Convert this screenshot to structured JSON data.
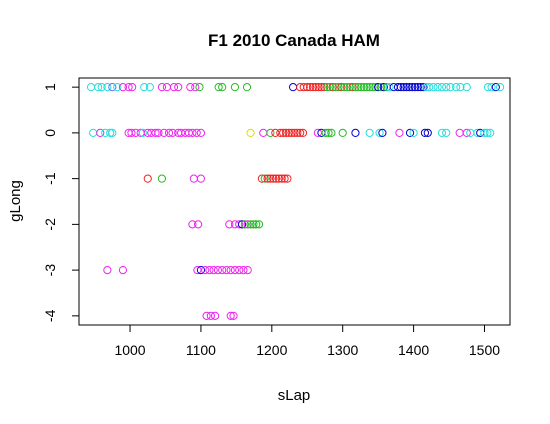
{
  "chart_data": {
    "type": "scatter",
    "title": "F1 2010 Canada HAM",
    "xlabel": "sLap",
    "ylabel": "gLong",
    "xlim": [
      928,
      1536
    ],
    "ylim": [
      -4.2,
      1.2
    ],
    "x_ticks": [
      1000,
      1100,
      1200,
      1300,
      1400,
      1500
    ],
    "y_ticks": [
      1,
      0,
      -1,
      -2,
      -3,
      -4
    ],
    "grid": false,
    "legend": "none",
    "marker": "open-circle",
    "points": [
      {
        "x": 945,
        "y": 1,
        "color": "#22dddd"
      },
      {
        "x": 955,
        "y": 1,
        "color": "#22dddd"
      },
      {
        "x": 960,
        "y": 1,
        "color": "#22dddd"
      },
      {
        "x": 968,
        "y": 1,
        "color": "#22dddd"
      },
      {
        "x": 975,
        "y": 1,
        "color": "#6666ff"
      },
      {
        "x": 982,
        "y": 1,
        "color": "#22dddd"
      },
      {
        "x": 990,
        "y": 1,
        "color": "#ee22ee"
      },
      {
        "x": 998,
        "y": 1,
        "color": "#ee22ee"
      },
      {
        "x": 1003,
        "y": 1,
        "color": "#ee22ee"
      },
      {
        "x": 1020,
        "y": 1,
        "color": "#22dddd"
      },
      {
        "x": 1028,
        "y": 1,
        "color": "#22dddd"
      },
      {
        "x": 1045,
        "y": 1,
        "color": "#ee22ee"
      },
      {
        "x": 1052,
        "y": 1,
        "color": "#ee22ee"
      },
      {
        "x": 1062,
        "y": 1,
        "color": "#ee22ee"
      },
      {
        "x": 1068,
        "y": 1,
        "color": "#ee22ee"
      },
      {
        "x": 1085,
        "y": 1,
        "color": "#ee22ee"
      },
      {
        "x": 1092,
        "y": 1,
        "color": "#ee22ee"
      },
      {
        "x": 1098,
        "y": 1,
        "color": "#22bb22"
      },
      {
        "x": 1125,
        "y": 1,
        "color": "#22bb22"
      },
      {
        "x": 1130,
        "y": 1,
        "color": "#22bb22"
      },
      {
        "x": 1148,
        "y": 1,
        "color": "#22bb22"
      },
      {
        "x": 1165,
        "y": 1,
        "color": "#22bb22"
      },
      {
        "x": 1230,
        "y": 1,
        "color": "#0000cc"
      },
      {
        "x": 1240,
        "y": 1,
        "color": "#ee2222"
      },
      {
        "x": 1245,
        "y": 1,
        "color": "#ee2222"
      },
      {
        "x": 1250,
        "y": 1,
        "color": "#ee2222"
      },
      {
        "x": 1254,
        "y": 1,
        "color": "#ee2222"
      },
      {
        "x": 1258,
        "y": 1,
        "color": "#ee2222"
      },
      {
        "x": 1262,
        "y": 1,
        "color": "#ee2222"
      },
      {
        "x": 1266,
        "y": 1,
        "color": "#ee2222"
      },
      {
        "x": 1270,
        "y": 1,
        "color": "#ee2222"
      },
      {
        "x": 1274,
        "y": 1,
        "color": "#ee2222"
      },
      {
        "x": 1278,
        "y": 1,
        "color": "#22bb22"
      },
      {
        "x": 1282,
        "y": 1,
        "color": "#22bb22"
      },
      {
        "x": 1286,
        "y": 1,
        "color": "#ee2222"
      },
      {
        "x": 1290,
        "y": 1,
        "color": "#22bb22"
      },
      {
        "x": 1294,
        "y": 1,
        "color": "#22bb22"
      },
      {
        "x": 1298,
        "y": 1,
        "color": "#ee2222"
      },
      {
        "x": 1302,
        "y": 1,
        "color": "#22bb22"
      },
      {
        "x": 1306,
        "y": 1,
        "color": "#22bb22"
      },
      {
        "x": 1310,
        "y": 1,
        "color": "#22bb22"
      },
      {
        "x": 1314,
        "y": 1,
        "color": "#ee2222"
      },
      {
        "x": 1318,
        "y": 1,
        "color": "#22bb22"
      },
      {
        "x": 1322,
        "y": 1,
        "color": "#22bb22"
      },
      {
        "x": 1326,
        "y": 1,
        "color": "#22bb22"
      },
      {
        "x": 1330,
        "y": 1,
        "color": "#22bb22"
      },
      {
        "x": 1334,
        "y": 1,
        "color": "#22bb22"
      },
      {
        "x": 1338,
        "y": 1,
        "color": "#22bb22"
      },
      {
        "x": 1342,
        "y": 1,
        "color": "#22bb22"
      },
      {
        "x": 1346,
        "y": 1,
        "color": "#22bb22"
      },
      {
        "x": 1350,
        "y": 1,
        "color": "#0000cc"
      },
      {
        "x": 1354,
        "y": 1,
        "color": "#22bb22"
      },
      {
        "x": 1358,
        "y": 1,
        "color": "#0000cc"
      },
      {
        "x": 1362,
        "y": 1,
        "color": "#22bb22"
      },
      {
        "x": 1366,
        "y": 1,
        "color": "#22dddd"
      },
      {
        "x": 1372,
        "y": 1,
        "color": "#0000cc"
      },
      {
        "x": 1378,
        "y": 1,
        "color": "#0000cc"
      },
      {
        "x": 1382,
        "y": 1,
        "color": "#0000cc"
      },
      {
        "x": 1386,
        "y": 1,
        "color": "#0000cc"
      },
      {
        "x": 1390,
        "y": 1,
        "color": "#0000cc"
      },
      {
        "x": 1394,
        "y": 1,
        "color": "#0000cc"
      },
      {
        "x": 1398,
        "y": 1,
        "color": "#0000cc"
      },
      {
        "x": 1402,
        "y": 1,
        "color": "#0000cc"
      },
      {
        "x": 1406,
        "y": 1,
        "color": "#0000cc"
      },
      {
        "x": 1410,
        "y": 1,
        "color": "#0000cc"
      },
      {
        "x": 1414,
        "y": 1,
        "color": "#0000cc"
      },
      {
        "x": 1418,
        "y": 1,
        "color": "#22dddd"
      },
      {
        "x": 1422,
        "y": 1,
        "color": "#22dddd"
      },
      {
        "x": 1428,
        "y": 1,
        "color": "#22dddd"
      },
      {
        "x": 1434,
        "y": 1,
        "color": "#22dddd"
      },
      {
        "x": 1440,
        "y": 1,
        "color": "#22dddd"
      },
      {
        "x": 1446,
        "y": 1,
        "color": "#22dddd"
      },
      {
        "x": 1452,
        "y": 1,
        "color": "#22dddd"
      },
      {
        "x": 1460,
        "y": 1,
        "color": "#22dddd"
      },
      {
        "x": 1466,
        "y": 1,
        "color": "#22dddd"
      },
      {
        "x": 1475,
        "y": 1,
        "color": "#22dddd"
      },
      {
        "x": 1505,
        "y": 1,
        "color": "#22dddd"
      },
      {
        "x": 1510,
        "y": 1,
        "color": "#22dddd"
      },
      {
        "x": 1516,
        "y": 1,
        "color": "#0000cc"
      },
      {
        "x": 1522,
        "y": 1,
        "color": "#22dddd"
      },
      {
        "x": 948,
        "y": 0,
        "color": "#22dddd"
      },
      {
        "x": 958,
        "y": 0,
        "color": "#ee22ee"
      },
      {
        "x": 965,
        "y": 0,
        "color": "#22dddd"
      },
      {
        "x": 972,
        "y": 0,
        "color": "#22dddd"
      },
      {
        "x": 975,
        "y": 0,
        "color": "#22dddd"
      },
      {
        "x": 998,
        "y": 0,
        "color": "#ee22ee"
      },
      {
        "x": 1002,
        "y": 0,
        "color": "#ee22ee"
      },
      {
        "x": 1008,
        "y": 0,
        "color": "#ee22ee"
      },
      {
        "x": 1015,
        "y": 0,
        "color": "#ee22ee"
      },
      {
        "x": 1018,
        "y": 0,
        "color": "#22dddd"
      },
      {
        "x": 1025,
        "y": 0,
        "color": "#ee22ee"
      },
      {
        "x": 1030,
        "y": 0,
        "color": "#ee22ee"
      },
      {
        "x": 1036,
        "y": 0,
        "color": "#ee22ee"
      },
      {
        "x": 1040,
        "y": 0,
        "color": "#ee22ee"
      },
      {
        "x": 1048,
        "y": 0,
        "color": "#ee22ee"
      },
      {
        "x": 1055,
        "y": 0,
        "color": "#ee22ee"
      },
      {
        "x": 1060,
        "y": 0,
        "color": "#ee22ee"
      },
      {
        "x": 1068,
        "y": 0,
        "color": "#ee22ee"
      },
      {
        "x": 1072,
        "y": 0,
        "color": "#ee22ee"
      },
      {
        "x": 1078,
        "y": 0,
        "color": "#ee22ee"
      },
      {
        "x": 1083,
        "y": 0,
        "color": "#ee22ee"
      },
      {
        "x": 1088,
        "y": 0,
        "color": "#ee22ee"
      },
      {
        "x": 1094,
        "y": 0,
        "color": "#ee22ee"
      },
      {
        "x": 1100,
        "y": 0,
        "color": "#ee22ee"
      },
      {
        "x": 1170,
        "y": 0,
        "color": "#dddd00"
      },
      {
        "x": 1188,
        "y": 0,
        "color": "#ee22ee"
      },
      {
        "x": 1198,
        "y": 0,
        "color": "#22bb22"
      },
      {
        "x": 1205,
        "y": 0,
        "color": "#ee2222"
      },
      {
        "x": 1212,
        "y": 0,
        "color": "#ee2222"
      },
      {
        "x": 1216,
        "y": 0,
        "color": "#ee2222"
      },
      {
        "x": 1220,
        "y": 0,
        "color": "#ee2222"
      },
      {
        "x": 1224,
        "y": 0,
        "color": "#ee2222"
      },
      {
        "x": 1228,
        "y": 0,
        "color": "#ee2222"
      },
      {
        "x": 1232,
        "y": 0,
        "color": "#ee2222"
      },
      {
        "x": 1236,
        "y": 0,
        "color": "#ee2222"
      },
      {
        "x": 1240,
        "y": 0,
        "color": "#ee2222"
      },
      {
        "x": 1244,
        "y": 0,
        "color": "#ee2222"
      },
      {
        "x": 1265,
        "y": 0,
        "color": "#ee22ee"
      },
      {
        "x": 1270,
        "y": 0,
        "color": "#0000cc"
      },
      {
        "x": 1276,
        "y": 0,
        "color": "#22bb22"
      },
      {
        "x": 1280,
        "y": 0,
        "color": "#22bb22"
      },
      {
        "x": 1284,
        "y": 0,
        "color": "#22bb22"
      },
      {
        "x": 1300,
        "y": 0,
        "color": "#22bb22"
      },
      {
        "x": 1318,
        "y": 0,
        "color": "#0000cc"
      },
      {
        "x": 1338,
        "y": 0,
        "color": "#22dddd"
      },
      {
        "x": 1352,
        "y": 0,
        "color": "#22dddd"
      },
      {
        "x": 1356,
        "y": 0,
        "color": "#0000cc"
      },
      {
        "x": 1380,
        "y": 0,
        "color": "#ee22ee"
      },
      {
        "x": 1395,
        "y": 0,
        "color": "#0000cc"
      },
      {
        "x": 1400,
        "y": 0,
        "color": "#22dddd"
      },
      {
        "x": 1416,
        "y": 0,
        "color": "#0000cc"
      },
      {
        "x": 1420,
        "y": 0,
        "color": "#0000cc"
      },
      {
        "x": 1440,
        "y": 0,
        "color": "#22dddd"
      },
      {
        "x": 1446,
        "y": 0,
        "color": "#22dddd"
      },
      {
        "x": 1465,
        "y": 0,
        "color": "#ee22ee"
      },
      {
        "x": 1475,
        "y": 0,
        "color": "#ee22ee"
      },
      {
        "x": 1480,
        "y": 0,
        "color": "#22dddd"
      },
      {
        "x": 1490,
        "y": 0,
        "color": "#22dddd"
      },
      {
        "x": 1494,
        "y": 0,
        "color": "#0000cc"
      },
      {
        "x": 1500,
        "y": 0,
        "color": "#22dddd"
      },
      {
        "x": 1504,
        "y": 0,
        "color": "#22dddd"
      },
      {
        "x": 1508,
        "y": 0,
        "color": "#22dddd"
      },
      {
        "x": 1025,
        "y": -1,
        "color": "#ee2222"
      },
      {
        "x": 1045,
        "y": -1,
        "color": "#22bb22"
      },
      {
        "x": 1090,
        "y": -1,
        "color": "#ee22ee"
      },
      {
        "x": 1100,
        "y": -1,
        "color": "#ee22ee"
      },
      {
        "x": 1186,
        "y": -1,
        "color": "#ee2222"
      },
      {
        "x": 1190,
        "y": -1,
        "color": "#22bb22"
      },
      {
        "x": 1194,
        "y": -1,
        "color": "#ee2222"
      },
      {
        "x": 1198,
        "y": -1,
        "color": "#ee2222"
      },
      {
        "x": 1202,
        "y": -1,
        "color": "#ee2222"
      },
      {
        "x": 1206,
        "y": -1,
        "color": "#ee2222"
      },
      {
        "x": 1210,
        "y": -1,
        "color": "#ee2222"
      },
      {
        "x": 1214,
        "y": -1,
        "color": "#ee2222"
      },
      {
        "x": 1218,
        "y": -1,
        "color": "#ee2222"
      },
      {
        "x": 1222,
        "y": -1,
        "color": "#ee2222"
      },
      {
        "x": 1088,
        "y": -2,
        "color": "#ee22ee"
      },
      {
        "x": 1096,
        "y": -2,
        "color": "#ee22ee"
      },
      {
        "x": 1140,
        "y": -2,
        "color": "#ee22ee"
      },
      {
        "x": 1148,
        "y": -2,
        "color": "#ee22ee"
      },
      {
        "x": 1154,
        "y": -2,
        "color": "#ee22ee"
      },
      {
        "x": 1158,
        "y": -2,
        "color": "#0000cc"
      },
      {
        "x": 1162,
        "y": -2,
        "color": "#22bb22"
      },
      {
        "x": 1166,
        "y": -2,
        "color": "#ee22ee"
      },
      {
        "x": 1170,
        "y": -2,
        "color": "#22bb22"
      },
      {
        "x": 1174,
        "y": -2,
        "color": "#22bb22"
      },
      {
        "x": 1178,
        "y": -2,
        "color": "#22bb22"
      },
      {
        "x": 1182,
        "y": -2,
        "color": "#22bb22"
      },
      {
        "x": 968,
        "y": -3,
        "color": "#ee22ee"
      },
      {
        "x": 990,
        "y": -3,
        "color": "#ee22ee"
      },
      {
        "x": 1095,
        "y": -3,
        "color": "#ee22ee"
      },
      {
        "x": 1100,
        "y": -3,
        "color": "#0000cc"
      },
      {
        "x": 1106,
        "y": -3,
        "color": "#ee22ee"
      },
      {
        "x": 1112,
        "y": -3,
        "color": "#ee22ee"
      },
      {
        "x": 1118,
        "y": -3,
        "color": "#ee22ee"
      },
      {
        "x": 1124,
        "y": -3,
        "color": "#ee22ee"
      },
      {
        "x": 1130,
        "y": -3,
        "color": "#ee22ee"
      },
      {
        "x": 1136,
        "y": -3,
        "color": "#ee22ee"
      },
      {
        "x": 1142,
        "y": -3,
        "color": "#ee22ee"
      },
      {
        "x": 1148,
        "y": -3,
        "color": "#ee22ee"
      },
      {
        "x": 1154,
        "y": -3,
        "color": "#ee22ee"
      },
      {
        "x": 1160,
        "y": -3,
        "color": "#ee22ee"
      },
      {
        "x": 1166,
        "y": -3,
        "color": "#ee22ee"
      },
      {
        "x": 1108,
        "y": -4,
        "color": "#ee22ee"
      },
      {
        "x": 1114,
        "y": -4,
        "color": "#ee22ee"
      },
      {
        "x": 1120,
        "y": -4,
        "color": "#ee22ee"
      },
      {
        "x": 1142,
        "y": -4,
        "color": "#ee22ee"
      },
      {
        "x": 1146,
        "y": -4,
        "color": "#ee22ee"
      }
    ]
  }
}
